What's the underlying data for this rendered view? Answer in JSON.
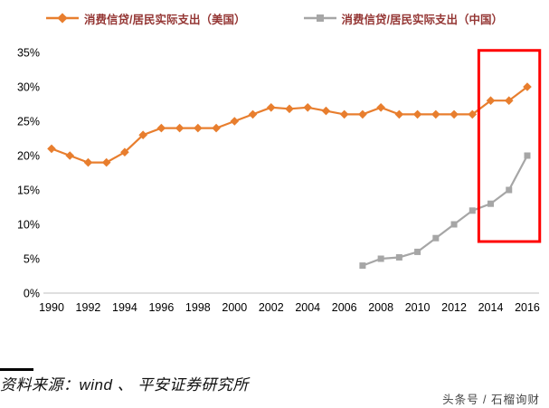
{
  "legend": {
    "text_color": "#953735",
    "items": [
      {
        "label": "消费信贷/居民实际支出（美国）",
        "color": "#E87E2E",
        "marker": "diamond"
      },
      {
        "label": "消费信贷/居民实际支出（中国）",
        "color": "#A6A6A6",
        "marker": "square"
      }
    ]
  },
  "chart_data": {
    "type": "line",
    "title": "",
    "xlabel": "",
    "ylabel": "",
    "ylim": [
      0,
      35
    ],
    "grid": false,
    "legend_position": "top",
    "axis_color": "#BFBFBF",
    "tick_label_color": "#000000",
    "y_ticks": [
      {
        "value": 0,
        "label": "0%"
      },
      {
        "value": 5,
        "label": "5%"
      },
      {
        "value": 10,
        "label": "10%"
      },
      {
        "value": 15,
        "label": "15%"
      },
      {
        "value": 20,
        "label": "20%"
      },
      {
        "value": 25,
        "label": "25%"
      },
      {
        "value": 30,
        "label": "30%"
      },
      {
        "value": 35,
        "label": "35%"
      }
    ],
    "x_ticks": [
      {
        "value": 1990,
        "label": "1990"
      },
      {
        "value": 1992,
        "label": "1992"
      },
      {
        "value": 1994,
        "label": "1994"
      },
      {
        "value": 1996,
        "label": "1996"
      },
      {
        "value": 1998,
        "label": "1998"
      },
      {
        "value": 2000,
        "label": "2000"
      },
      {
        "value": 2002,
        "label": "2002"
      },
      {
        "value": 2004,
        "label": "2004"
      },
      {
        "value": 2006,
        "label": "2006"
      },
      {
        "value": 2008,
        "label": "2008"
      },
      {
        "value": 2010,
        "label": "2010"
      },
      {
        "value": 2012,
        "label": "2012"
      },
      {
        "value": 2014,
        "label": "2014"
      },
      {
        "value": 2016,
        "label": "2016"
      }
    ],
    "series": [
      {
        "name": "消费信贷/居民实际支出（美国）",
        "color": "#E87E2E",
        "marker": "diamond",
        "x": [
          1990,
          1991,
          1992,
          1993,
          1994,
          1995,
          1996,
          1997,
          1998,
          1999,
          2000,
          2001,
          2002,
          2003,
          2004,
          2005,
          2006,
          2007,
          2008,
          2009,
          2010,
          2011,
          2012,
          2013,
          2014,
          2015,
          2016
        ],
        "values": [
          21,
          20,
          19,
          19,
          20.5,
          23,
          24,
          24,
          24,
          24,
          25,
          26,
          27,
          26.8,
          27,
          26.5,
          26,
          26,
          27,
          26,
          26,
          26,
          26,
          26,
          28,
          28,
          30
        ]
      },
      {
        "name": "消费信贷/居民实际支出（中国）",
        "color": "#A6A6A6",
        "marker": "square",
        "x": [
          2007,
          2008,
          2009,
          2010,
          2011,
          2012,
          2013,
          2014,
          2015,
          2016
        ],
        "values": [
          4,
          5,
          5.2,
          6,
          8,
          10,
          12,
          13,
          15,
          20
        ]
      }
    ],
    "highlight_box": {
      "x_start": 2013.35,
      "x_end": 2016.68,
      "y_top": 35.3,
      "y_bottom": 7.5,
      "color": "#FF0000"
    }
  },
  "footer": {
    "source": "资料来源：wind 、 平安证券研究所",
    "watermark": "头条号 / 石榴询财"
  }
}
